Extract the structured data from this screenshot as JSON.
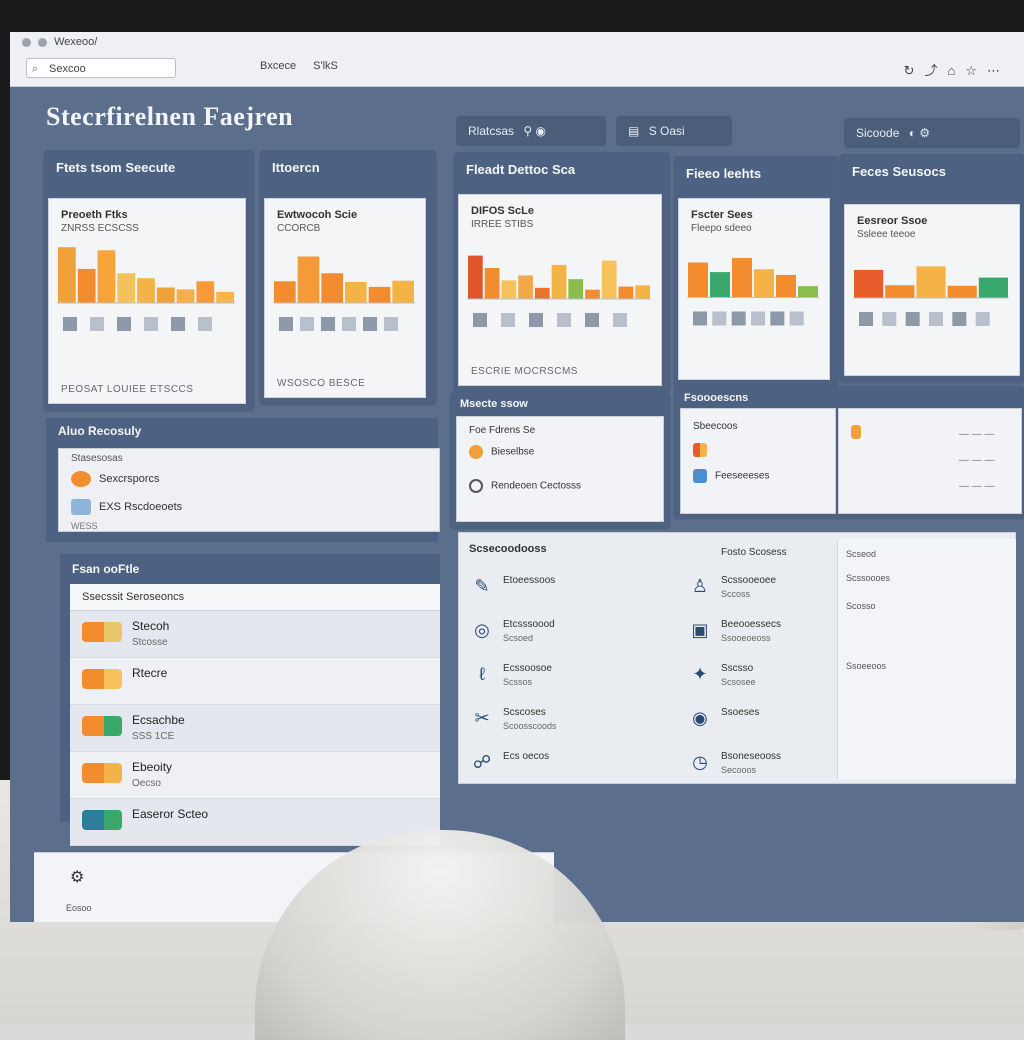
{
  "browser": {
    "title_bar": "Wexeoo/",
    "address": "Sexcoo",
    "toolbar": [
      "Bxcece",
      "S'lkS"
    ],
    "right_icons": [
      "↻",
      "⤴",
      "⌂",
      "☆",
      "⋯"
    ]
  },
  "app": {
    "title": "Stecrfirelnen Faejren",
    "header_buttons": [
      {
        "label": "Rlatcsas",
        "icon": "search-icon"
      },
      {
        "label": "S Oasi",
        "icon": "chart-icon"
      },
      {
        "label": "Sicoode",
        "icon": "user-icon"
      }
    ]
  },
  "charts": [
    {
      "card_title": "Ftets tsom Seecute",
      "panel_title": "Preoeth Ftks",
      "panel_sub": "ZNRSS  ECSCSS",
      "footer": "PEOSAT LOUIEE ETSCCS",
      "colors": [
        "#f0a23a",
        "#f28c2e",
        "#f7a43a",
        "#f5c15b",
        "#f3b348",
        "#f0a23a",
        "#f6b04a",
        "#f49a36",
        "#f7b64b"
      ]
    },
    {
      "card_title": "Ittoercn",
      "panel_title": "Ewtwocoh Scie",
      "panel_sub": "CCORCB",
      "footer": "WSOSCO  BESCE",
      "colors": [
        "#f28c2e",
        "#f49a36",
        "#f28c2e",
        "#f5b347",
        "#f28c2e",
        "#f5b347"
      ]
    },
    {
      "card_title": "Fleadt Dettoc Sca",
      "panel_title": "DIFOS ScLe",
      "panel_sub": "IRREE STIBS",
      "footer": "ESCRIE MOCRSCMS",
      "colors": [
        "#e0552b",
        "#f28c2e",
        "#f7c15b",
        "#f3a94a",
        "#e8732d",
        "#f2b347",
        "#8bbd4c",
        "#f28c2e",
        "#f7c15b",
        "#f28c2e",
        "#f5b347"
      ]
    },
    {
      "card_title": "Fieeo leehts",
      "panel_title": "Fscter Sees",
      "panel_sub": "Fleepo sdeeo",
      "footer": "",
      "colors": [
        "#f28c2e",
        "#3aa86b",
        "#f28c2e",
        "#f5b347",
        "#f28c2e",
        "#8bbd4c"
      ]
    },
    {
      "card_title": "Feces Seusocs",
      "panel_title": "Eesreor Ssoe",
      "panel_sub": "Ssleee teeoe",
      "footer": "",
      "colors": [
        "#e85c2b",
        "#f28c2e",
        "#f5b347",
        "#f28c2e",
        "#3aa86b"
      ]
    }
  ],
  "activity": {
    "title": "Aluo Recosuly",
    "sub": "Stasesosas",
    "rows": [
      {
        "label": "Sexcrsporcs",
        "color": "#f28c2e"
      },
      {
        "label": "EXS Rscdoeoets",
        "color": "#8fb4d9"
      }
    ],
    "footer": "WESS"
  },
  "list": {
    "card_title": "Fsan ooFtle",
    "header": "Ssecssit Seroseoncs",
    "rows": [
      {
        "name": "Stecoh",
        "meta": "Stcosse",
        "c1": "#f28c2e",
        "c2": "#e8c66a"
      },
      {
        "name": "Rtecre",
        "meta": "",
        "c1": "#f28c2e",
        "c2": "#f7c15b"
      },
      {
        "name": "Ecsachbe",
        "meta": "SSS 1CE",
        "c1": "#f28c2e",
        "c2": "#3aa86b"
      },
      {
        "name": "Ebeoity",
        "meta": "Oecso",
        "c1": "#f28c2e",
        "c2": "#f5b347"
      },
      {
        "name": "Easeror Scteo",
        "meta": "",
        "c1": "#2f7d9c",
        "c2": "#3aa86b"
      }
    ]
  },
  "mid_cards": {
    "left": {
      "title": "Msecte ssow",
      "rows": [
        "Foe Fdrens Se",
        "Bieselbse",
        "Rendeoen Cectosss"
      ]
    },
    "right": {
      "title": "Fsoooescns",
      "rows": [
        "Sbeecoos",
        "Feeseeeses"
      ],
      "values": [
        "— — —",
        "— — —",
        "— — —"
      ]
    }
  },
  "directory": {
    "title": "Scsecoodooss",
    "col1": [
      {
        "icon": "✎",
        "name": "Etoeessoos",
        "sub": ""
      },
      {
        "icon": "◎",
        "name": "Etcsssoood",
        "sub": "Scsoed"
      },
      {
        "icon": "ℓ",
        "name": "Ecssoosoe",
        "sub": "Scssos"
      },
      {
        "icon": "✂",
        "name": "Scscoses",
        "sub": "Scoosscoods"
      },
      {
        "icon": "☍",
        "name": "Ecs oecos",
        "sub": ""
      }
    ],
    "col2_title": "Fosto Scosess",
    "col2": [
      {
        "icon": "♙",
        "name": "Scssooeoee",
        "sub": "Sccoss"
      },
      {
        "icon": "▣",
        "name": "Beeooessecs",
        "sub": "Ssooeoeoss"
      },
      {
        "icon": "✦",
        "name": "Sscsso",
        "sub": "Scsosee"
      },
      {
        "icon": "◉",
        "name": "Ssoeses",
        "sub": ""
      },
      {
        "icon": "◷",
        "name": "Bsoneseooss",
        "sub": "Secooos"
      }
    ],
    "side": [
      "Scseod",
      "Scssoooes",
      "Scosso",
      "Ssoeeoos"
    ]
  },
  "taskbar": {
    "label": "Eosoo"
  }
}
